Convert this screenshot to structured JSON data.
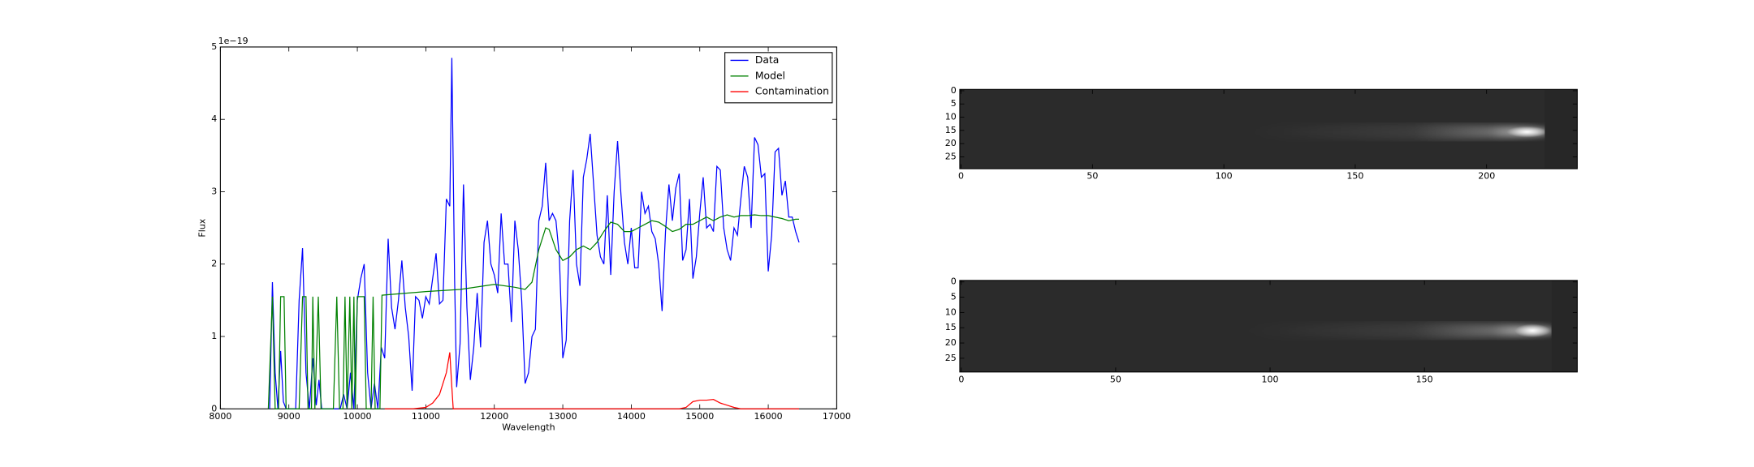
{
  "chart_data": [
    {
      "type": "line",
      "xlabel": "Wavelength",
      "ylabel": "Flux",
      "y_offset_label": "1e−19",
      "xlim": [
        8000,
        17000
      ],
      "ylim": [
        0,
        5
      ],
      "xticks": [
        8000,
        9000,
        10000,
        11000,
        12000,
        13000,
        14000,
        15000,
        16000,
        17000
      ],
      "yticks": [
        0,
        1,
        2,
        3,
        4,
        5
      ],
      "legend": "upper right",
      "series": [
        {
          "name": "Data",
          "color": "#0000ff",
          "x": [
            8720,
            8760,
            8800,
            8840,
            8880,
            8920,
            8960,
            9000,
            9100,
            9150,
            9200,
            9250,
            9300,
            9350,
            9400,
            9440,
            9480,
            9550,
            9650,
            9750,
            9800,
            9850,
            9900,
            9950,
            10000,
            10050,
            10100,
            10150,
            10200,
            10250,
            10300,
            10350,
            10400,
            10450,
            10500,
            10550,
            10600,
            10650,
            10700,
            10750,
            10800,
            10850,
            10900,
            10950,
            11000,
            11050,
            11100,
            11150,
            11200,
            11250,
            11300,
            11350,
            11380,
            11420,
            11450,
            11500,
            11550,
            11600,
            11650,
            11700,
            11750,
            11800,
            11850,
            11900,
            11950,
            12000,
            12050,
            12100,
            12150,
            12200,
            12250,
            12300,
            12350,
            12400,
            12450,
            12500,
            12550,
            12600,
            12650,
            12700,
            12750,
            12800,
            12850,
            12900,
            12950,
            13000,
            13050,
            13100,
            13150,
            13200,
            13250,
            13300,
            13350,
            13400,
            13450,
            13500,
            13550,
            13600,
            13650,
            13700,
            13750,
            13800,
            13850,
            13900,
            13950,
            14000,
            14050,
            14100,
            14150,
            14200,
            14250,
            14300,
            14350,
            14400,
            14450,
            14500,
            14550,
            14600,
            14650,
            14700,
            14750,
            14800,
            14850,
            14900,
            14950,
            15000,
            15050,
            15100,
            15150,
            15200,
            15250,
            15300,
            15350,
            15400,
            15450,
            15500,
            15550,
            15600,
            15650,
            15700,
            15750,
            15800,
            15850,
            15900,
            15950,
            16000,
            16050,
            16100,
            16150,
            16200,
            16250,
            16300,
            16350,
            16400,
            16450
          ],
          "values": [
            0,
            1.75,
            0.5,
            0,
            0.8,
            0.1,
            0,
            0,
            0,
            1.5,
            2.22,
            0.5,
            0,
            0.7,
            0.05,
            0.4,
            0,
            0,
            0,
            0,
            0.2,
            0,
            0.5,
            0,
            1.5,
            1.8,
            2.0,
            0.5,
            0,
            0.35,
            0,
            0.85,
            0.7,
            2.35,
            1.4,
            1.1,
            1.5,
            2.05,
            1.4,
            1.0,
            0.25,
            1.55,
            1.5,
            1.25,
            1.55,
            1.45,
            1.8,
            2.15,
            1.45,
            1.5,
            2.9,
            2.8,
            4.85,
            1.8,
            0.3,
            0.9,
            3.1,
            1.4,
            0.4,
            0.85,
            1.6,
            0.85,
            2.3,
            2.6,
            2.0,
            1.85,
            1.6,
            2.7,
            2.0,
            2.0,
            1.2,
            2.6,
            2.2,
            1.5,
            0.35,
            0.5,
            1.0,
            1.1,
            2.6,
            2.8,
            3.4,
            2.6,
            2.7,
            2.6,
            2.1,
            0.7,
            0.95,
            2.6,
            3.3,
            2.0,
            1.7,
            3.2,
            3.45,
            3.8,
            3.1,
            2.4,
            2.1,
            2.0,
            2.95,
            1.85,
            3.0,
            3.7,
            2.95,
            2.3,
            2.0,
            2.5,
            1.95,
            1.95,
            3.0,
            2.7,
            2.8,
            2.45,
            2.35,
            2.0,
            1.35,
            2.45,
            3.1,
            2.6,
            3.05,
            3.25,
            2.05,
            2.2,
            2.9,
            1.8,
            2.1,
            2.7,
            3.2,
            2.5,
            2.55,
            2.45,
            3.35,
            3.3,
            2.5,
            2.2,
            2.05,
            2.5,
            2.4,
            2.9,
            3.35,
            3.2,
            2.5,
            3.75,
            3.65,
            3.2,
            3.25,
            1.9,
            2.4,
            3.55,
            3.6,
            2.95,
            3.15,
            2.65,
            2.65,
            2.45,
            2.3
          ]
        },
        {
          "name": "Model",
          "color": "#008000",
          "x": [
            8700,
            8760,
            8800,
            8850,
            8880,
            8930,
            8960,
            9150,
            9200,
            9250,
            9280,
            9330,
            9350,
            9380,
            9430,
            9470,
            9650,
            9700,
            9740,
            9790,
            9820,
            9850,
            9890,
            9920,
            9950,
            9970,
            10000,
            10100,
            10130,
            10200,
            10230,
            10260,
            10330,
            10360,
            11000,
            11500,
            12000,
            12300,
            12450,
            12550,
            12650,
            12750,
            12800,
            12900,
            13000,
            13100,
            13200,
            13300,
            13400,
            13500,
            13600,
            13700,
            13800,
            13900,
            14000,
            14100,
            14200,
            14300,
            14400,
            14500,
            14600,
            14700,
            14800,
            14900,
            15000,
            15100,
            15200,
            15300,
            15400,
            15500,
            15600,
            15700,
            15800,
            15900,
            16000,
            16100,
            16200,
            16300,
            16400,
            16450
          ],
          "values": [
            0,
            1.55,
            0,
            0,
            1.55,
            1.55,
            0,
            0,
            1.55,
            1.55,
            0,
            0,
            1.55,
            0,
            1.55,
            0,
            0,
            1.55,
            0,
            0,
            1.55,
            0,
            1.55,
            0,
            1.55,
            0,
            1.55,
            1.55,
            0,
            0,
            1.55,
            0,
            0,
            1.57,
            1.62,
            1.65,
            1.72,
            1.68,
            1.65,
            1.75,
            2.2,
            2.5,
            2.48,
            2.2,
            2.05,
            2.1,
            2.2,
            2.25,
            2.2,
            2.3,
            2.45,
            2.58,
            2.55,
            2.45,
            2.45,
            2.5,
            2.55,
            2.6,
            2.58,
            2.52,
            2.45,
            2.48,
            2.55,
            2.55,
            2.6,
            2.65,
            2.6,
            2.65,
            2.68,
            2.65,
            2.67,
            2.67,
            2.68,
            2.67,
            2.67,
            2.65,
            2.63,
            2.6,
            2.62,
            2.62
          ]
        },
        {
          "name": "Contamination",
          "color": "#ff0000",
          "x": [
            10400,
            10800,
            11000,
            11100,
            11200,
            11300,
            11350,
            11380,
            11400,
            12000,
            14700,
            14800,
            14900,
            15000,
            15100,
            15200,
            15300,
            15400,
            15500,
            15600,
            16450
          ],
          "values": [
            0,
            0,
            0.02,
            0.08,
            0.2,
            0.5,
            0.78,
            0.3,
            0,
            0,
            0,
            0.02,
            0.1,
            0.12,
            0.12,
            0.13,
            0.08,
            0.05,
            0.02,
            0,
            0
          ]
        }
      ]
    },
    {
      "type": "image",
      "xlim": [
        -0.5,
        234.5
      ],
      "ylim": [
        29.5,
        -0.5
      ],
      "xticks": [
        0,
        50,
        100,
        150,
        200
      ],
      "yticks": [
        0,
        5,
        10,
        15,
        20,
        25
      ]
    },
    {
      "type": "image",
      "xlim": [
        -0.5,
        199.5
      ],
      "ylim": [
        29.5,
        -0.5
      ],
      "xticks": [
        0,
        50,
        100,
        150
      ],
      "yticks": [
        0,
        5,
        10,
        15,
        20,
        25
      ]
    }
  ]
}
